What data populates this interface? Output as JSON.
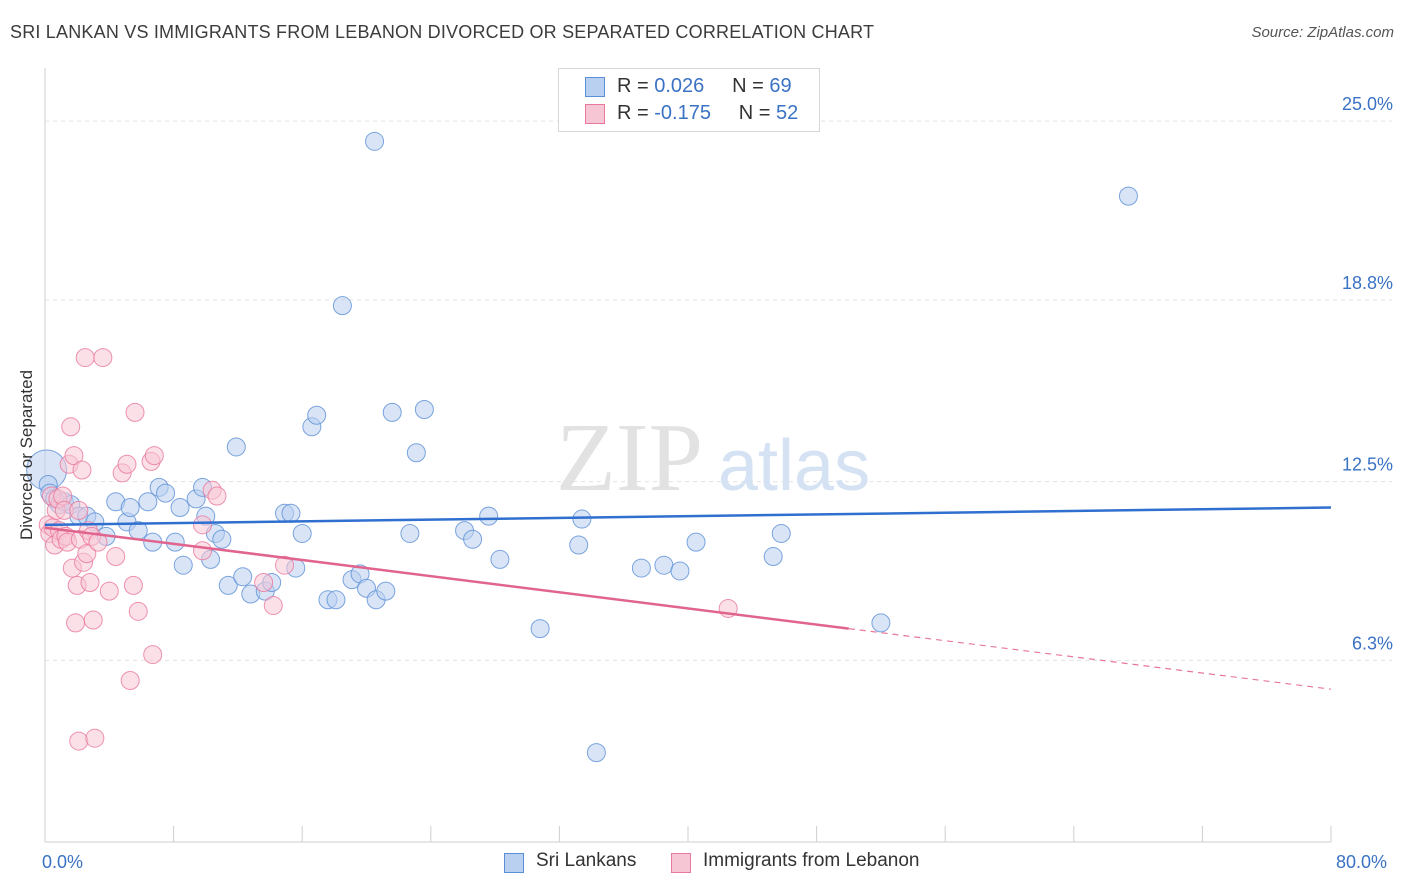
{
  "title": "SRI LANKAN VS IMMIGRANTS FROM LEBANON DIVORCED OR SEPARATED CORRELATION CHART",
  "source": "Source: ZipAtlas.com",
  "watermark": {
    "zip": "ZIP",
    "atlas": "atlas"
  },
  "legend": {
    "r_label": "R =",
    "n_label": "N =",
    "series": [
      {
        "r": "0.026",
        "n": "69"
      },
      {
        "r": "-0.175",
        "n": "52"
      }
    ]
  },
  "chart_data": {
    "type": "scatter",
    "ylabel": "Divorced or Separated",
    "xlim": [
      0,
      80
    ],
    "ylim": [
      0,
      26.6
    ],
    "x_tick_labels": [
      "0.0%",
      "80.0%"
    ],
    "y_ticks": [
      {
        "value": 25.0,
        "label": "25.0%"
      },
      {
        "value": 18.8,
        "label": "18.8%"
      },
      {
        "value": 12.5,
        "label": "12.5%"
      },
      {
        "value": 6.3,
        "label": "6.3%"
      }
    ],
    "grid": "horizontal dashed",
    "legend_position": "top-center",
    "series": [
      {
        "name": "Sri Lankans",
        "color": "#5b8fd6",
        "fill": "#b9d0f0",
        "trend": {
          "x0": 0,
          "y0": 11.0,
          "x1": 80,
          "y1": 11.6
        },
        "points": [
          [
            0.1,
            12.9
          ],
          [
            0.2,
            12.4
          ],
          [
            0.3,
            12.1
          ],
          [
            0.6,
            11.9
          ],
          [
            0.9,
            11.7
          ],
          [
            1.2,
            11.8
          ],
          [
            1.6,
            11.7
          ],
          [
            2.1,
            11.3
          ],
          [
            2.6,
            11.3
          ],
          [
            3.1,
            11.1
          ],
          [
            3.8,
            10.6
          ],
          [
            4.4,
            11.8
          ],
          [
            5.1,
            11.1
          ],
          [
            5.3,
            11.6
          ],
          [
            5.8,
            10.8
          ],
          [
            6.4,
            11.8
          ],
          [
            6.7,
            10.4
          ],
          [
            7.1,
            12.3
          ],
          [
            7.5,
            12.1
          ],
          [
            8.1,
            10.4
          ],
          [
            8.4,
            11.6
          ],
          [
            8.6,
            9.6
          ],
          [
            9.4,
            11.9
          ],
          [
            9.8,
            12.3
          ],
          [
            10.0,
            11.3
          ],
          [
            10.3,
            9.8
          ],
          [
            10.6,
            10.7
          ],
          [
            11.0,
            10.5
          ],
          [
            11.4,
            8.9
          ],
          [
            11.9,
            13.7
          ],
          [
            12.3,
            9.2
          ],
          [
            12.8,
            8.6
          ],
          [
            13.7,
            8.7
          ],
          [
            14.1,
            9.0
          ],
          [
            14.9,
            11.4
          ],
          [
            15.3,
            11.4
          ],
          [
            15.6,
            9.5
          ],
          [
            16.0,
            10.7
          ],
          [
            16.6,
            14.4
          ],
          [
            16.9,
            14.8
          ],
          [
            17.6,
            8.4
          ],
          [
            18.1,
            8.4
          ],
          [
            18.5,
            18.6
          ],
          [
            19.1,
            9.1
          ],
          [
            19.6,
            9.3
          ],
          [
            20.0,
            8.8
          ],
          [
            20.5,
            24.3
          ],
          [
            20.6,
            8.4
          ],
          [
            21.2,
            8.7
          ],
          [
            21.6,
            14.9
          ],
          [
            22.7,
            10.7
          ],
          [
            23.1,
            13.5
          ],
          [
            23.6,
            15.0
          ],
          [
            26.1,
            10.8
          ],
          [
            26.6,
            10.5
          ],
          [
            27.6,
            11.3
          ],
          [
            28.3,
            9.8
          ],
          [
            30.8,
            7.4
          ],
          [
            33.2,
            10.3
          ],
          [
            33.4,
            11.2
          ],
          [
            34.3,
            3.1
          ],
          [
            37.1,
            9.5
          ],
          [
            38.5,
            9.6
          ],
          [
            39.5,
            9.4
          ],
          [
            40.5,
            10.4
          ],
          [
            45.3,
            9.9
          ],
          [
            45.8,
            10.7
          ],
          [
            52.0,
            7.6
          ],
          [
            67.4,
            22.4
          ]
        ]
      },
      {
        "name": "Immigrants from Lebanon",
        "color": "#e8789c",
        "fill": "#f7c6d5",
        "trend": {
          "x0": 0,
          "y0": 10.9,
          "x1": 50,
          "y1": 7.4,
          "x_dash_end": 80,
          "y_dash_end": 5.3
        },
        "points": [
          [
            0.2,
            11.0
          ],
          [
            0.3,
            10.7
          ],
          [
            0.4,
            12.0
          ],
          [
            0.5,
            10.9
          ],
          [
            0.6,
            10.3
          ],
          [
            0.7,
            11.5
          ],
          [
            0.8,
            11.9
          ],
          [
            0.9,
            10.8
          ],
          [
            1.0,
            10.5
          ],
          [
            1.1,
            12.0
          ],
          [
            1.2,
            11.5
          ],
          [
            1.3,
            10.6
          ],
          [
            1.4,
            10.4
          ],
          [
            1.5,
            13.1
          ],
          [
            1.6,
            14.4
          ],
          [
            1.7,
            9.5
          ],
          [
            1.8,
            13.4
          ],
          [
            1.9,
            7.6
          ],
          [
            2.0,
            8.9
          ],
          [
            2.1,
            11.5
          ],
          [
            2.1,
            3.5
          ],
          [
            2.2,
            10.5
          ],
          [
            2.3,
            12.9
          ],
          [
            2.4,
            9.7
          ],
          [
            2.5,
            16.8
          ],
          [
            2.6,
            10.0
          ],
          [
            2.7,
            10.8
          ],
          [
            2.8,
            9.0
          ],
          [
            2.9,
            10.6
          ],
          [
            3.0,
            7.7
          ],
          [
            3.1,
            3.6
          ],
          [
            3.3,
            10.4
          ],
          [
            3.6,
            16.8
          ],
          [
            4.0,
            8.7
          ],
          [
            4.4,
            9.9
          ],
          [
            4.8,
            12.8
          ],
          [
            5.1,
            13.1
          ],
          [
            5.3,
            5.6
          ],
          [
            5.5,
            8.9
          ],
          [
            5.6,
            14.9
          ],
          [
            5.8,
            8.0
          ],
          [
            6.6,
            13.2
          ],
          [
            6.8,
            13.4
          ],
          [
            6.7,
            6.5
          ],
          [
            9.8,
            10.1
          ],
          [
            9.8,
            11.0
          ],
          [
            10.4,
            12.2
          ],
          [
            10.7,
            12.0
          ],
          [
            13.6,
            9.0
          ],
          [
            14.2,
            8.2
          ],
          [
            14.9,
            9.6
          ],
          [
            42.5,
            8.1
          ]
        ]
      }
    ]
  }
}
